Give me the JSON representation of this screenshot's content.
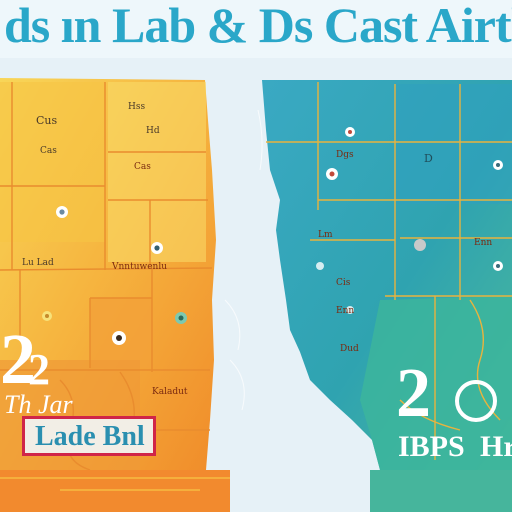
{
  "header": {
    "title": "ds ın Lab & Ds Cast Airth c"
  },
  "left_panel": {
    "labels": [
      {
        "text": "Cus"
      },
      {
        "text": "Cas"
      },
      {
        "text": "Hss"
      },
      {
        "text": "Hd"
      },
      {
        "text": "Cas"
      },
      {
        "text": "Lu Lad"
      },
      {
        "text": "Vnntuwenlu"
      },
      {
        "text": "Kaladut"
      }
    ],
    "big_number": "2",
    "small_number": "2",
    "caption": "Th Jar",
    "badge": "Lade Bnl"
  },
  "right_panel": {
    "labels": [
      {
        "text": "Dgs"
      },
      {
        "text": "D"
      },
      {
        "text": "Lm"
      },
      {
        "text": "Enn"
      },
      {
        "text": "Cis"
      },
      {
        "text": "Enn"
      },
      {
        "text": "Dud"
      }
    ],
    "big_number": "2",
    "circle_char": "o",
    "caption_left": "IBPS",
    "caption_right": "Hr"
  },
  "colors": {
    "left_warm": "#f6b13a",
    "left_yellow": "#f8d24a",
    "right_teal": "#2fa6b3",
    "right_green": "#3fb59a",
    "ocean": "#e6f1f7",
    "title": "#2aa7c9",
    "badge_border": "#d02548",
    "number_left": "#ffffff",
    "number_right": "#ffffff"
  }
}
